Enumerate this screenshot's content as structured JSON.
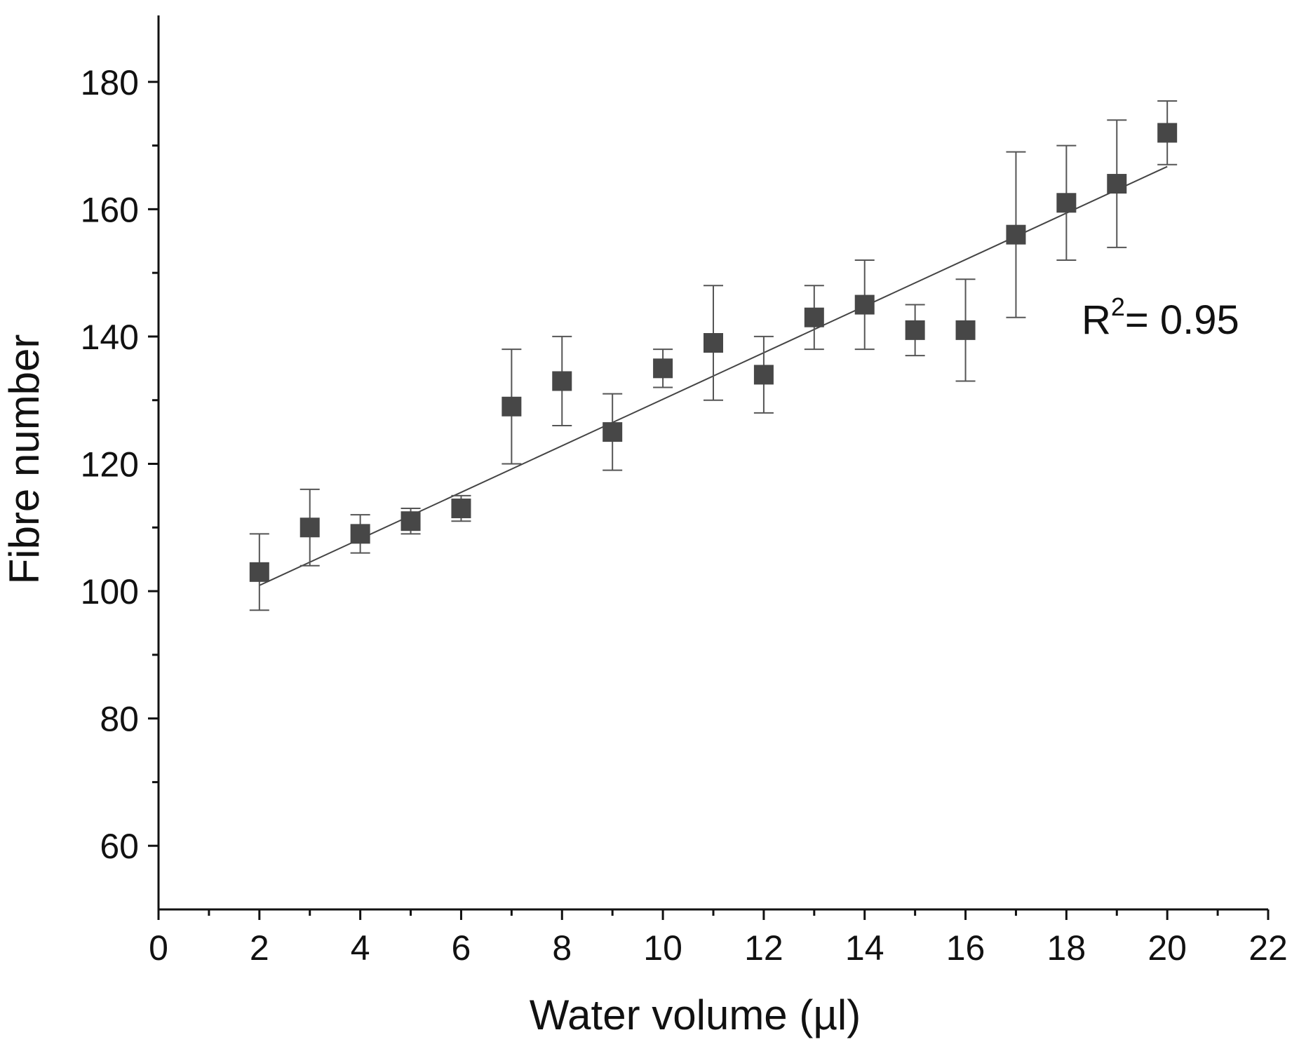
{
  "chart_data": {
    "type": "scatter",
    "title": "",
    "xlabel": "Water volume (µl)",
    "ylabel": "Fibre number",
    "xlim": [
      0,
      22
    ],
    "ylim": [
      50,
      190
    ],
    "x_ticks": [
      0,
      2,
      4,
      6,
      8,
      10,
      12,
      14,
      16,
      18,
      20,
      22
    ],
    "x_tick_labels": [
      "0",
      "2",
      "4",
      "6",
      "8",
      "10",
      "12",
      "14",
      "16",
      "18",
      "20",
      "22"
    ],
    "x_minor_step": 1,
    "y_ticks": [
      60,
      80,
      100,
      120,
      140,
      160,
      180
    ],
    "y_tick_labels": [
      "60",
      "80",
      "100",
      "120",
      "140",
      "160",
      "180"
    ],
    "y_minor_step": 10,
    "grid": false,
    "series": [
      {
        "name": "Fibre number",
        "marker": "square",
        "color": "#474747",
        "points": [
          {
            "x": 2,
            "y": 103,
            "err_low": 97,
            "err_high": 109
          },
          {
            "x": 3,
            "y": 110,
            "err_low": 104,
            "err_high": 116
          },
          {
            "x": 4,
            "y": 109,
            "err_low": 106,
            "err_high": 112
          },
          {
            "x": 5,
            "y": 111,
            "err_low": 109,
            "err_high": 113
          },
          {
            "x": 6,
            "y": 113,
            "err_low": 111,
            "err_high": 115
          },
          {
            "x": 7,
            "y": 129,
            "err_low": 120,
            "err_high": 138
          },
          {
            "x": 8,
            "y": 133,
            "err_low": 126,
            "err_high": 140
          },
          {
            "x": 9,
            "y": 125,
            "err_low": 119,
            "err_high": 131
          },
          {
            "x": 10,
            "y": 135,
            "err_low": 132,
            "err_high": 138
          },
          {
            "x": 11,
            "y": 139,
            "err_low": 130,
            "err_high": 148
          },
          {
            "x": 12,
            "y": 134,
            "err_low": 128,
            "err_high": 140
          },
          {
            "x": 13,
            "y": 143,
            "err_low": 138,
            "err_high": 148
          },
          {
            "x": 14,
            "y": 145,
            "err_low": 138,
            "err_high": 152
          },
          {
            "x": 15,
            "y": 141,
            "err_low": 137,
            "err_high": 145
          },
          {
            "x": 16,
            "y": 141,
            "err_low": 133,
            "err_high": 149
          },
          {
            "x": 17,
            "y": 156,
            "err_low": 143,
            "err_high": 169
          },
          {
            "x": 18,
            "y": 161,
            "err_low": 152,
            "err_high": 170
          },
          {
            "x": 19,
            "y": 164,
            "err_low": 154,
            "err_high": 174
          },
          {
            "x": 20,
            "y": 172,
            "err_low": 167,
            "err_high": 177
          }
        ]
      }
    ],
    "fit": {
      "type": "linear",
      "x_start": 2,
      "x_end": 20,
      "y_start": 100.9,
      "y_end": 166.7,
      "color": "#444444"
    },
    "annotation": {
      "base": "R",
      "superscript": "2",
      "text": "= 0.95"
    },
    "colors": {
      "axis": "#111111",
      "errorbar": "#555555",
      "marker": "#474747"
    }
  }
}
